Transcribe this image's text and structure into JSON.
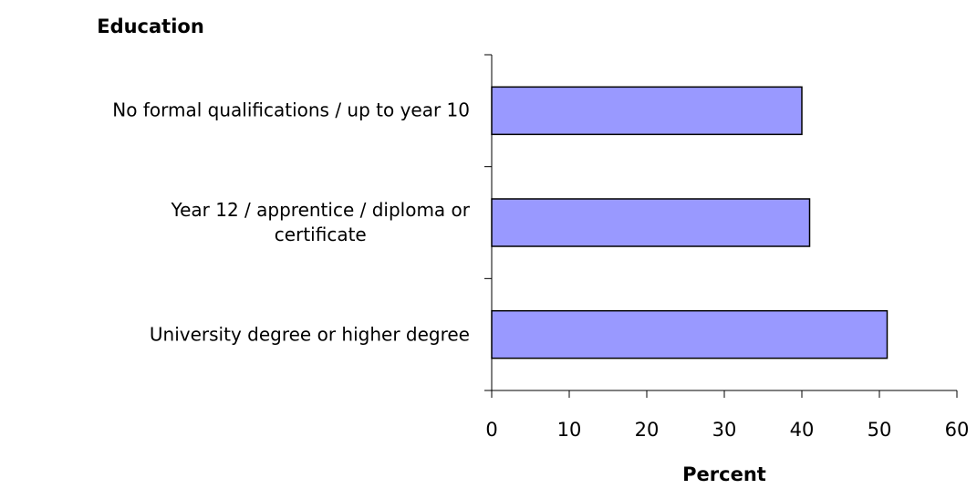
{
  "chart_data": {
    "type": "bar",
    "orientation": "horizontal",
    "y_title": "Education",
    "x_title": "Percent",
    "categories": [
      "No formal qualifications / up to year 10",
      "Year 12 / apprentice / diploma or\ncertificate",
      "University degree or higher degree"
    ],
    "values": [
      40,
      41,
      51
    ],
    "color": "#9999ff",
    "xlim": [
      0,
      60
    ],
    "xticks": [
      0,
      10,
      20,
      30,
      40,
      50,
      60
    ],
    "grid": false
  }
}
